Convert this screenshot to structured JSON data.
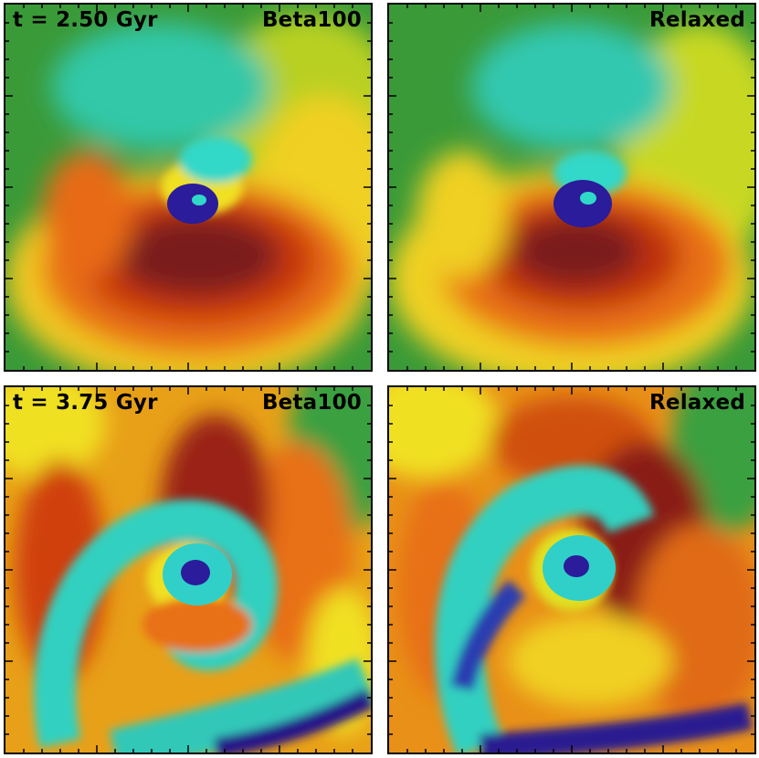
{
  "panels": [
    {
      "time_label": "t = 2.50 Gyr",
      "run_label": "Beta100"
    },
    {
      "time_label": "",
      "run_label": "Relaxed"
    },
    {
      "time_label": "t = 3.75 Gyr",
      "run_label": "Beta100"
    },
    {
      "time_label": "",
      "run_label": "Relaxed"
    }
  ],
  "colors": {
    "dark_red": "#7a1a1a",
    "red": "#c03010",
    "orange": "#e8701a",
    "yellow": "#f0e020",
    "green": "#3aa040",
    "cyan": "#30d8c8",
    "blue": "#3020a0"
  }
}
